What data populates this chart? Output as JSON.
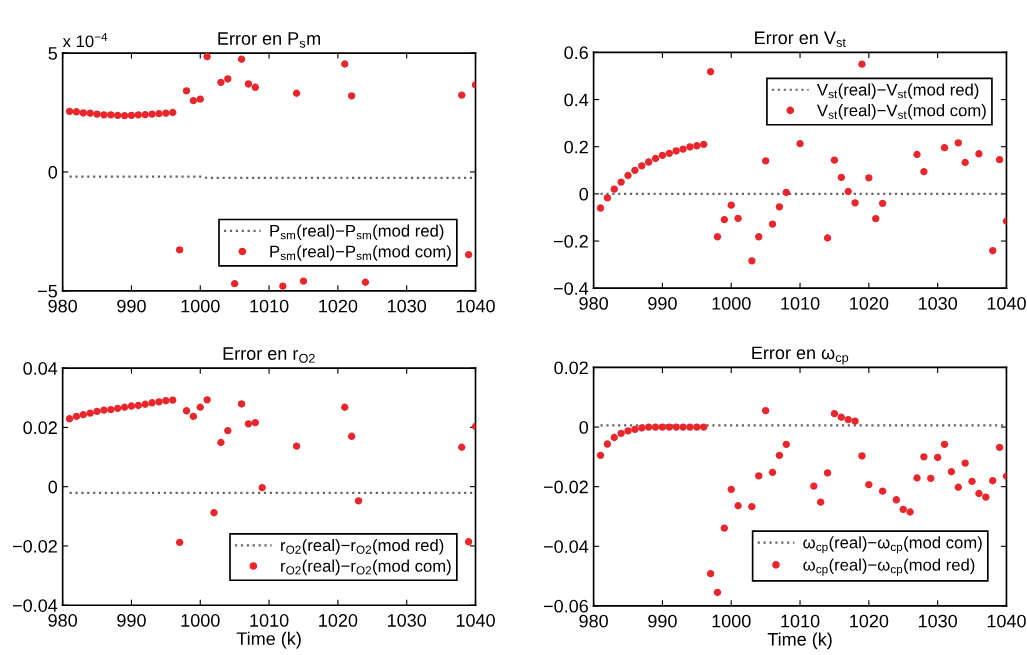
{
  "chart_data": [
    {
      "type": "scatter",
      "title": "Error en P$_{s}$m",
      "annotations": [
        "x 10$^{−4}$"
      ],
      "xlim": [
        980,
        1040
      ],
      "xticks": [
        980,
        990,
        1000,
        1010,
        1020,
        1030,
        1040
      ],
      "ylim": [
        -5,
        5
      ],
      "yticks": [
        5,
        0,
        {
          "value": -5,
          "label": "−5"
        }
      ],
      "grid": false,
      "legend": "bottom right",
      "series": [
        {
          "name": "P$_{sm}$(real)−P$_{sm}$(mod red)",
          "type": "line",
          "line_style": "dotted",
          "color": "#666666",
          "x": [
            981,
            1000,
            1001,
            1040
          ],
          "values": [
            -0.2,
            -0.2,
            -0.25,
            -0.25
          ]
        },
        {
          "name": "P$_{sm}$(real)−P$_{sm}$(mod com)",
          "marker": "circle",
          "color": "#e8262b",
          "x": [
            981,
            982,
            983,
            984,
            985,
            986,
            987,
            988,
            989,
            990,
            991,
            992,
            993,
            994,
            995,
            996,
            997,
            998,
            999,
            1000,
            1001,
            1003,
            1004,
            1005,
            1006,
            1007,
            1008,
            1012,
            1014,
            1015,
            1021,
            1022,
            1024,
            1038,
            1039,
            1040
          ],
          "values": [
            2.55,
            2.53,
            2.48,
            2.47,
            2.43,
            2.4,
            2.4,
            2.38,
            2.37,
            2.38,
            2.4,
            2.41,
            2.43,
            2.45,
            2.47,
            2.5,
            -3.28,
            3.41,
            3.0,
            3.06,
            4.85,
            3.77,
            3.91,
            -4.7,
            4.74,
            3.7,
            3.56,
            -4.8,
            3.31,
            -4.59,
            4.54,
            3.2,
            -4.64,
            3.23,
            -3.48,
            3.66
          ]
        }
      ]
    },
    {
      "type": "scatter",
      "title": "Error en V$_{st}$",
      "xlim": [
        980,
        1040
      ],
      "xticks": [
        980,
        990,
        1000,
        1010,
        1020,
        1030,
        1040
      ],
      "ylim": [
        -0.4,
        0.6
      ],
      "yticks": [
        0.6,
        0.4,
        0.2,
        0,
        {
          "value": -0.2,
          "label": "−0.2"
        },
        {
          "value": -0.4,
          "label": "−0.4"
        }
      ],
      "grid": false,
      "legend": "top right",
      "series": [
        {
          "name": "V$_{st}$(real)−V$_{st}$(mod red)",
          "type": "line",
          "line_style": "dotted",
          "color": "#666666",
          "x": [
            981,
            1040
          ],
          "values": [
            0,
            0
          ]
        },
        {
          "name": "V$_{st}$(real)−V$_{st}$(mod com)",
          "marker": "circle",
          "color": "#e8262b",
          "x": [
            981,
            982,
            983,
            984,
            985,
            986,
            987,
            988,
            989,
            990,
            991,
            992,
            993,
            994,
            995,
            996,
            997,
            998,
            999,
            1000,
            1001,
            1003,
            1004,
            1005,
            1006,
            1007,
            1008,
            1010,
            1014,
            1015,
            1016,
            1017,
            1018,
            1019,
            1020,
            1021,
            1022,
            1027,
            1028,
            1031,
            1033,
            1034,
            1036,
            1038,
            1039,
            1040
          ],
          "values": [
            -0.06,
            -0.017,
            0.02,
            0.05,
            0.078,
            0.1,
            0.119,
            0.135,
            0.15,
            0.163,
            0.172,
            0.182,
            0.19,
            0.199,
            0.204,
            0.21,
            0.518,
            -0.182,
            -0.109,
            -0.048,
            -0.104,
            -0.284,
            -0.182,
            0.14,
            -0.128,
            -0.055,
            0.006,
            0.213,
            -0.187,
            0.143,
            0.07,
            0.01,
            -0.038,
            0.55,
            0.068,
            -0.105,
            -0.04,
            0.167,
            0.094,
            0.196,
            0.216,
            0.133,
            0.17,
            -0.241,
            0.145,
            -0.116
          ]
        }
      ]
    },
    {
      "type": "scatter",
      "title": "Error en r$_{O2}$",
      "xlabel": "Time (k)",
      "xlim": [
        980,
        1040
      ],
      "xticks": [
        980,
        990,
        1000,
        1010,
        1020,
        1030,
        1040
      ],
      "ylim": [
        -0.04,
        0.04
      ],
      "yticks": [
        0.04,
        0.02,
        0,
        {
          "value": -0.02,
          "label": "−0.02"
        },
        {
          "value": -0.04,
          "label": "−0.04"
        }
      ],
      "grid": false,
      "legend": "bottom right",
      "series": [
        {
          "name": "r$_{O2}$(real)−r$_{O2}$(mod red)",
          "type": "line",
          "line_style": "dotted",
          "color": "#666666",
          "x": [
            981,
            1040
          ],
          "values": [
            -0.0021,
            -0.0021
          ]
        },
        {
          "name": "r$_{O2}$(real)−r$_{O2}$(mod com)",
          "marker": "circle",
          "color": "#e8262b",
          "x": [
            981,
            982,
            983,
            984,
            985,
            986,
            987,
            988,
            989,
            990,
            991,
            992,
            993,
            994,
            995,
            996,
            997,
            998,
            999,
            1000,
            1001,
            1002,
            1003,
            1004,
            1006,
            1007,
            1008,
            1009,
            1014,
            1021,
            1022,
            1023,
            1038,
            1039,
            1040
          ],
          "values": [
            0.0229,
            0.0237,
            0.0243,
            0.0248,
            0.0254,
            0.0258,
            0.026,
            0.0264,
            0.0268,
            0.0272,
            0.0274,
            0.0278,
            0.0283,
            0.0286,
            0.029,
            0.0292,
            -0.0188,
            0.0256,
            0.0237,
            0.0268,
            0.0293,
            -0.0088,
            0.0149,
            0.0189,
            0.0279,
            0.0212,
            0.0216,
            -0.0003,
            0.0137,
            0.0268,
            0.017,
            -0.0048,
            0.0133,
            -0.0186,
            0.0203
          ]
        }
      ]
    },
    {
      "type": "scatter",
      "title": "Error en ω$_{cp}$",
      "xlabel": "Time (k)",
      "xlim": [
        980,
        1040
      ],
      "xticks": [
        980,
        990,
        1000,
        1010,
        1020,
        1030,
        1040
      ],
      "ylim": [
        -0.06,
        0.02
      ],
      "yticks": [
        0.02,
        0,
        {
          "value": -0.02,
          "label": "−0.02"
        },
        {
          "value": -0.04,
          "label": "−0.04"
        },
        {
          "value": -0.06,
          "label": "−0.06"
        }
      ],
      "grid": false,
      "legend": "bottom right",
      "series": [
        {
          "name": "ω$_{cp}$(real)−ω$_{cp}$(mod com)",
          "type": "line",
          "line_style": "dotted",
          "color": "#666666",
          "x": [
            981,
            1040
          ],
          "values": [
            0.0006,
            0.0006
          ]
        },
        {
          "name": "ω$_{cp}$(real)−ω$_{cp}$(mod red)",
          "marker": "circle",
          "color": "#e8262b",
          "x": [
            981,
            982,
            983,
            984,
            985,
            986,
            987,
            988,
            989,
            990,
            991,
            992,
            993,
            994,
            995,
            996,
            997,
            998,
            999,
            1000,
            1001,
            1003,
            1004,
            1005,
            1006,
            1007,
            1008,
            1012,
            1013,
            1014,
            1015,
            1016,
            1017,
            1018,
            1019,
            1020,
            1022,
            1024,
            1025,
            1026,
            1027,
            1028,
            1029,
            1030,
            1031,
            1032,
            1033,
            1034,
            1035,
            1036,
            1037,
            1038,
            1039,
            1040
          ],
          "values": [
            -0.0095,
            -0.0057,
            -0.0035,
            -0.0021,
            -0.0013,
            -0.0008,
            -0.0003,
            0,
            0,
            0,
            0,
            0,
            0,
            0,
            0,
            0,
            -0.0492,
            -0.0555,
            -0.0339,
            -0.0209,
            -0.0264,
            -0.0267,
            -0.0164,
            0.0055,
            -0.0152,
            -0.0095,
            -0.0058,
            -0.0198,
            -0.0252,
            -0.0154,
            0.0045,
            0.0033,
            0.0025,
            0.002,
            -0.0097,
            -0.0193,
            -0.0215,
            -0.0244,
            -0.0276,
            -0.0285,
            -0.0171,
            -0.01,
            -0.0172,
            -0.0102,
            -0.0058,
            -0.015,
            -0.0202,
            -0.0121,
            -0.0182,
            -0.0223,
            -0.0235,
            -0.018,
            -0.0068,
            -0.0165
          ]
        }
      ]
    }
  ]
}
